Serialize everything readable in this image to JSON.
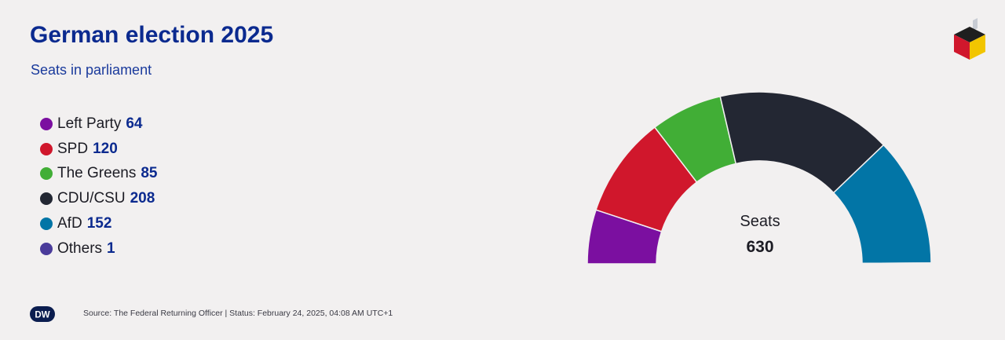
{
  "header": {
    "title": "German election 2025",
    "subtitle": "Seats in parliament"
  },
  "chart_data": {
    "type": "pie",
    "subtype": "half-donut (parliament)",
    "title": "German election 2025",
    "subtitle": "Seats in parliament",
    "series": [
      {
        "name": "Left Party",
        "value": 64,
        "color": "#7b0fa0"
      },
      {
        "name": "SPD",
        "value": 120,
        "color": "#d0172c"
      },
      {
        "name": "The Greens",
        "value": 85,
        "color": "#41ae36"
      },
      {
        "name": "CDU/CSU",
        "value": 208,
        "color": "#232733"
      },
      {
        "name": "AfD",
        "value": 152,
        "color": "#0275a6"
      },
      {
        "name": "Others",
        "value": 1,
        "color": "#4a3b9a"
      }
    ],
    "center_label": "Seats",
    "total": "630",
    "legend_position": "left"
  },
  "footer": {
    "logo_text": "DW",
    "source": "Source: The Federal Returning Officer | Status: February 24, 2025, 04:08 AM UTC+1"
  },
  "logo": {
    "icon": "ballot-box-cube-icon",
    "colors": [
      "#1f1f1f",
      "#d0172c",
      "#f2c500"
    ]
  }
}
